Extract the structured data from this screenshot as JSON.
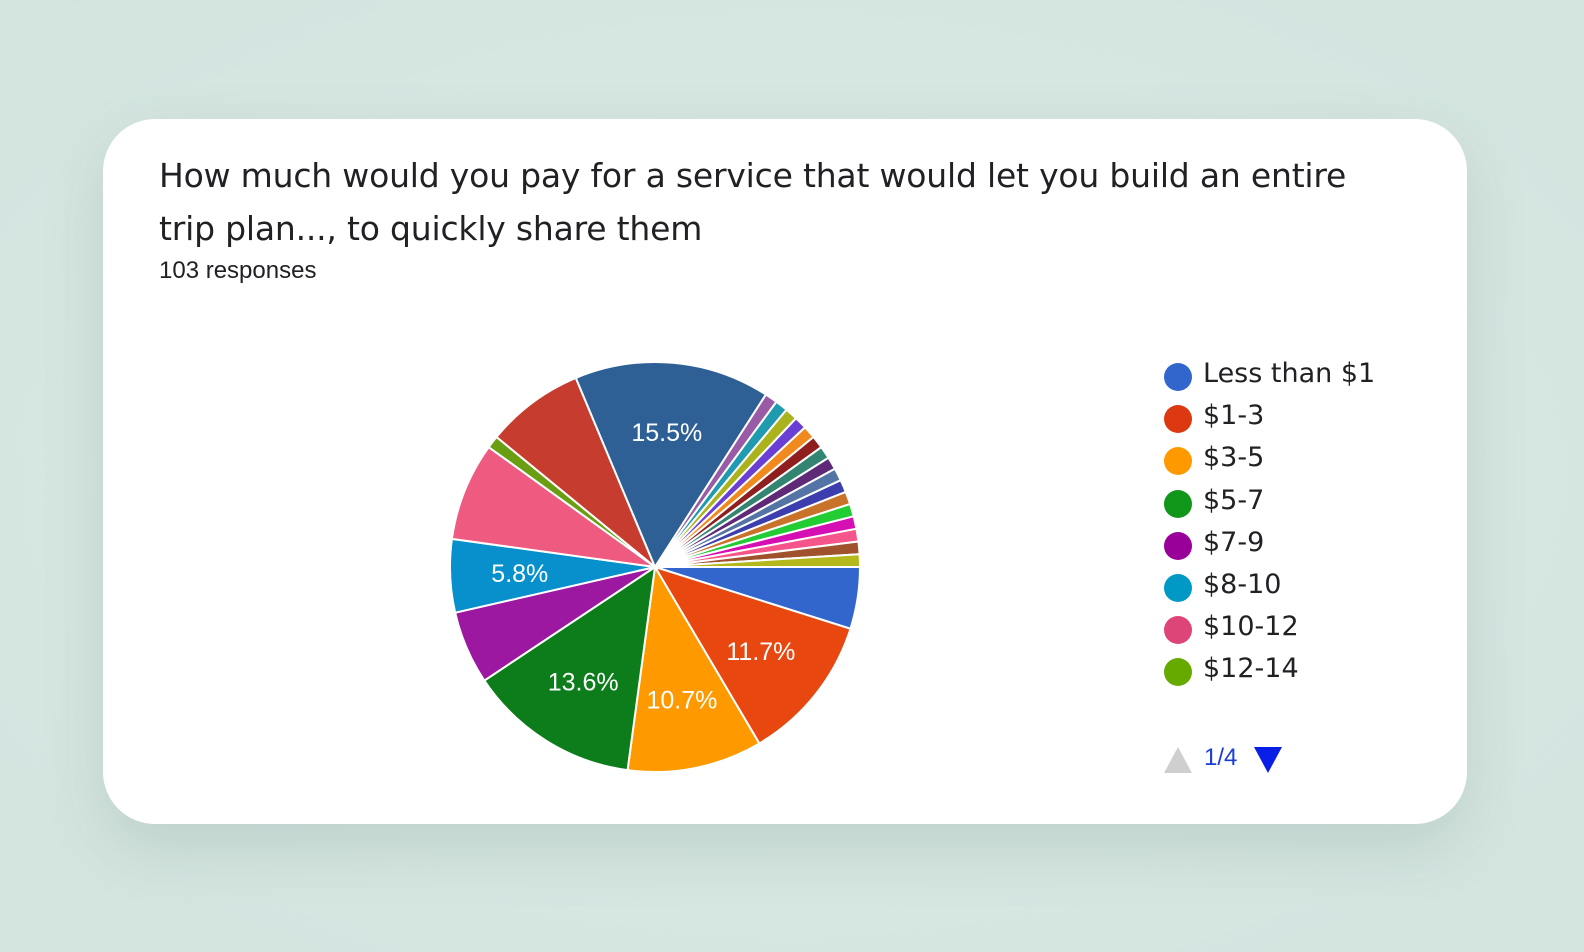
{
  "card": {
    "title": "How much would you pay for a service that would let you build an entire trip plan..., to quickly share them",
    "subtitle": "103 responses"
  },
  "pager": {
    "text": "1/4"
  },
  "chart_data": {
    "type": "pie",
    "title": "How much would you pay for a service that would let you build an entire trip plan..., to quickly share them",
    "total_responses": 103,
    "start_angle_deg": 90,
    "direction": "clockwise",
    "legend_position": "right",
    "legend_page": "1/4",
    "legend": [
      {
        "label": "Less than $1",
        "color": "#3366cc"
      },
      {
        "label": "$1-3",
        "color": "#dc3912"
      },
      {
        "label": "$3-5",
        "color": "#ff9900"
      },
      {
        "label": "$5-7",
        "color": "#109618"
      },
      {
        "label": "$7-9",
        "color": "#990099"
      },
      {
        "label": "$8-10",
        "color": "#0099c6"
      },
      {
        "label": "$10-12",
        "color": "#dd4477"
      },
      {
        "label": "$12-14",
        "color": "#66aa00"
      }
    ],
    "slices": [
      {
        "label": "Less than $1",
        "value": 4.9,
        "color": "#3366cc",
        "show_label": false
      },
      {
        "label": "$1-3",
        "value": 11.7,
        "color": "#e8470f",
        "show_label": true
      },
      {
        "label": "$3-5",
        "value": 10.7,
        "color": "#ff9900",
        "show_label": true
      },
      {
        "label": "$5-7",
        "value": 13.6,
        "color": "#0c7d1a",
        "show_label": true
      },
      {
        "label": "$7-9",
        "value": 5.8,
        "color": "#9c18a0",
        "show_label": false
      },
      {
        "label": "$8-10",
        "value": 5.8,
        "color": "#0890cc",
        "show_label": true
      },
      {
        "label": "$10-12",
        "value": 7.8,
        "color": "#ee5a80",
        "show_label": false
      },
      {
        "label": "$12-14",
        "value": 1.0,
        "color": "#6a9e12",
        "show_label": false
      },
      {
        "label": "",
        "value": 7.8,
        "color": "#c63c2f",
        "show_label": false
      },
      {
        "label": "",
        "value": 15.5,
        "color": "#2e6096",
        "show_label": true
      },
      {
        "label": "",
        "value": 1.0,
        "color": "#9a5ba6",
        "show_label": false
      },
      {
        "label": "",
        "value": 1.0,
        "color": "#1f9aae",
        "show_label": false
      },
      {
        "label": "",
        "value": 1.0,
        "color": "#aab21c",
        "show_label": false
      },
      {
        "label": "",
        "value": 1.0,
        "color": "#6a3fd4",
        "show_label": false
      },
      {
        "label": "",
        "value": 1.0,
        "color": "#f08a1e",
        "show_label": false
      },
      {
        "label": "",
        "value": 1.0,
        "color": "#8f1f1f",
        "show_label": false
      },
      {
        "label": "",
        "value": 1.0,
        "color": "#348472",
        "show_label": false
      },
      {
        "label": "",
        "value": 1.0,
        "color": "#5e2a78",
        "show_label": false
      },
      {
        "label": "",
        "value": 1.0,
        "color": "#5574a6",
        "show_label": false
      },
      {
        "label": "",
        "value": 1.0,
        "color": "#3b3eac",
        "show_label": false
      },
      {
        "label": "",
        "value": 1.0,
        "color": "#c8722a",
        "show_label": false
      },
      {
        "label": "",
        "value": 1.0,
        "color": "#22cc33",
        "show_label": false
      },
      {
        "label": "",
        "value": 1.0,
        "color": "#d60fb4",
        "show_label": false
      },
      {
        "label": "",
        "value": 1.0,
        "color": "#f5558a",
        "show_label": false
      },
      {
        "label": "",
        "value": 1.0,
        "color": "#a0522d",
        "show_label": false
      },
      {
        "label": "",
        "value": 1.0,
        "color": "#b5b81a",
        "show_label": false
      }
    ]
  }
}
